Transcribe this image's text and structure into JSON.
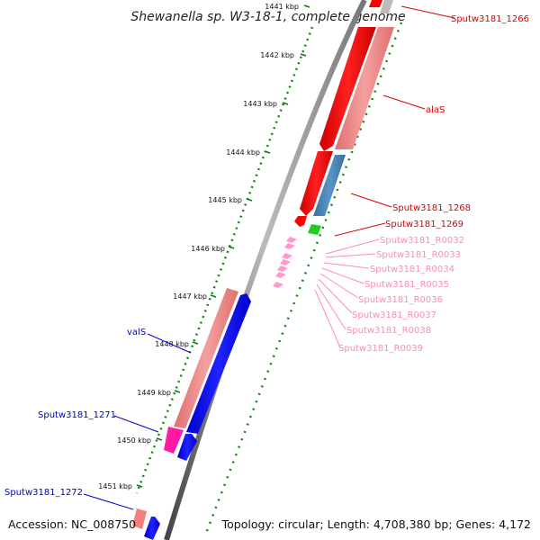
{
  "title": "Shewanella sp. W3-18-1, complete genome",
  "footer": {
    "accession": "Accession: NC_008750",
    "topology": "Topology: circular; Length: 4,708,380 bp; Genes: 4,172"
  },
  "ticks": [
    "1441 kbp",
    "1442 kbp",
    "1443 kbp",
    "1444 kbp",
    "1445 kbp",
    "1446 kbp",
    "1447 kbp",
    "1448 kbp",
    "1449 kbp",
    "1450 kbp",
    "1451 kbp"
  ],
  "gene_labels": {
    "sputw3181_1266": "Sputw3181_1266",
    "alaS": "alaS",
    "sputw3181_1268": "Sputw3181_1268",
    "sputw3181_1269": "Sputw3181_1269",
    "r0032": "Sputw3181_R0032",
    "r0033": "Sputw3181_R0033",
    "r0034": "Sputw3181_R0034",
    "r0035": "Sputw3181_R0035",
    "r0036": "Sputw3181_R0036",
    "r0037": "Sputw3181_R0037",
    "r0038": "Sputw3181_R0038",
    "r0039": "Sputw3181_R0039",
    "valS": "valS",
    "sputw3181_1271": "Sputw3181_1271",
    "sputw3181_1272": "Sputw3181_1272"
  },
  "colors": {
    "red": "#ff0000",
    "salmon": "#f08080",
    "steelblue": "#4682b4",
    "blue": "#0000ff",
    "pink": "#ff69b4",
    "green": "#00aa00",
    "dark_green": "#117711",
    "label_red": "#dd0000",
    "label_pink": "#ff88bb",
    "label_blue": "#0000cc"
  }
}
